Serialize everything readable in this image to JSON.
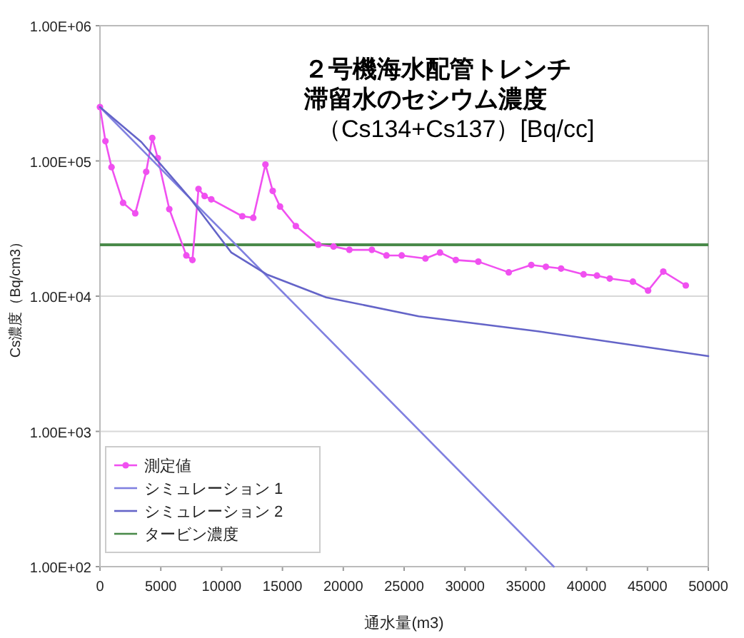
{
  "chart_data": {
    "type": "line",
    "title": "２号機海水配管トレンチ滞留水のセシウム濃度",
    "subtitle": "（Cs134+Cs137）[Bq/cc]",
    "xlabel": "通水量(m3)",
    "ylabel": "Cs濃度（Bq/cm3）",
    "log": "y",
    "grid": "y",
    "legend": "bottom left",
    "xlim": [
      0,
      50000
    ],
    "xticks": [
      0,
      5000,
      10000,
      15000,
      20000,
      25000,
      30000,
      35000,
      40000,
      45000,
      50000
    ],
    "ylim": [
      100,
      1000000
    ],
    "yticks": [
      {
        "value": 100,
        "label": "1.00E+02"
      },
      {
        "value": 1000,
        "label": "1.00E+03"
      },
      {
        "value": 10000,
        "label": "1.00E+04"
      },
      {
        "value": 100000,
        "label": "1.00E+05"
      },
      {
        "value": 1000000,
        "label": "1.00E+06"
      }
    ],
    "series": [
      {
        "name": "測定値",
        "color": "#f050f0",
        "marker": "circle",
        "x": [
          0,
          450,
          950,
          1900,
          2900,
          3800,
          4300,
          4750,
          5700,
          7100,
          7600,
          8100,
          8600,
          9150,
          11700,
          12600,
          13600,
          14200,
          14800,
          16100,
          17950,
          19200,
          20500,
          22350,
          23550,
          24800,
          26750,
          27950,
          29250,
          31100,
          33600,
          35450,
          36650,
          37900,
          39750,
          40850,
          41900,
          43800,
          45050,
          46300,
          48150
        ],
        "values": [
          250000,
          140000,
          90000,
          49000,
          41000,
          83000,
          148000,
          105000,
          44000,
          20000,
          18500,
          62000,
          55000,
          52000,
          39000,
          38000,
          94000,
          60000,
          46000,
          33000,
          24000,
          23300,
          22000,
          22000,
          20000,
          20000,
          19000,
          21000,
          18500,
          18000,
          15000,
          17000,
          16500,
          16000,
          14500,
          14200,
          13500,
          12800,
          11000,
          15200,
          12000
        ]
      },
      {
        "name": "シミュレーション 1",
        "color": "#8080e0",
        "marker": "none",
        "x": [
          0,
          37300
        ],
        "values": [
          250000,
          100
        ]
      },
      {
        "name": "シミュレーション 2",
        "color": "#6464c8",
        "marker": "none",
        "x": [
          0,
          3400,
          7400,
          10800,
          13700,
          18600,
          26200,
          36000,
          50000
        ],
        "values": [
          250000,
          138000,
          53000,
          21000,
          14500,
          9800,
          7100,
          5500,
          3600
        ]
      }
    ],
    "ref_lines": [
      {
        "axis": "y",
        "value": 24000,
        "label": "タービン濃度",
        "color": "#4a8a4a"
      }
    ]
  }
}
